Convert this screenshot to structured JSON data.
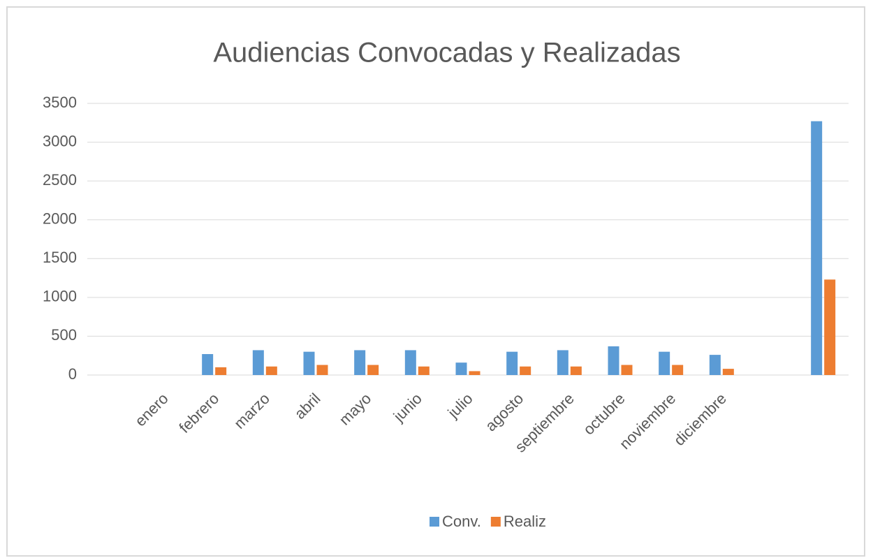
{
  "chart_data": {
    "type": "bar",
    "title": "Audiencias Convocadas y  Realizadas",
    "categories": [
      null,
      "enero",
      "febrero",
      "marzo",
      "abril",
      "mayo",
      "junio",
      "julio",
      "agosto",
      "septiembre",
      "octubre",
      "noviembre",
      "diciembre",
      null,
      null
    ],
    "series": [
      {
        "name": "Conv.",
        "color": "#5b9bd5",
        "values": [
          null,
          0,
          270,
          320,
          300,
          320,
          320,
          160,
          300,
          320,
          370,
          300,
          260,
          null,
          3270
        ]
      },
      {
        "name": "Realiz",
        "color": "#ed7d31",
        "values": [
          null,
          0,
          100,
          110,
          130,
          130,
          110,
          50,
          110,
          110,
          130,
          130,
          80,
          null,
          1230
        ]
      }
    ],
    "ylim": [
      0,
      3500
    ],
    "yticks": [
      0,
      500,
      1000,
      1500,
      2000,
      2500,
      3000,
      3500
    ],
    "grid": true,
    "legend": "bottom"
  }
}
